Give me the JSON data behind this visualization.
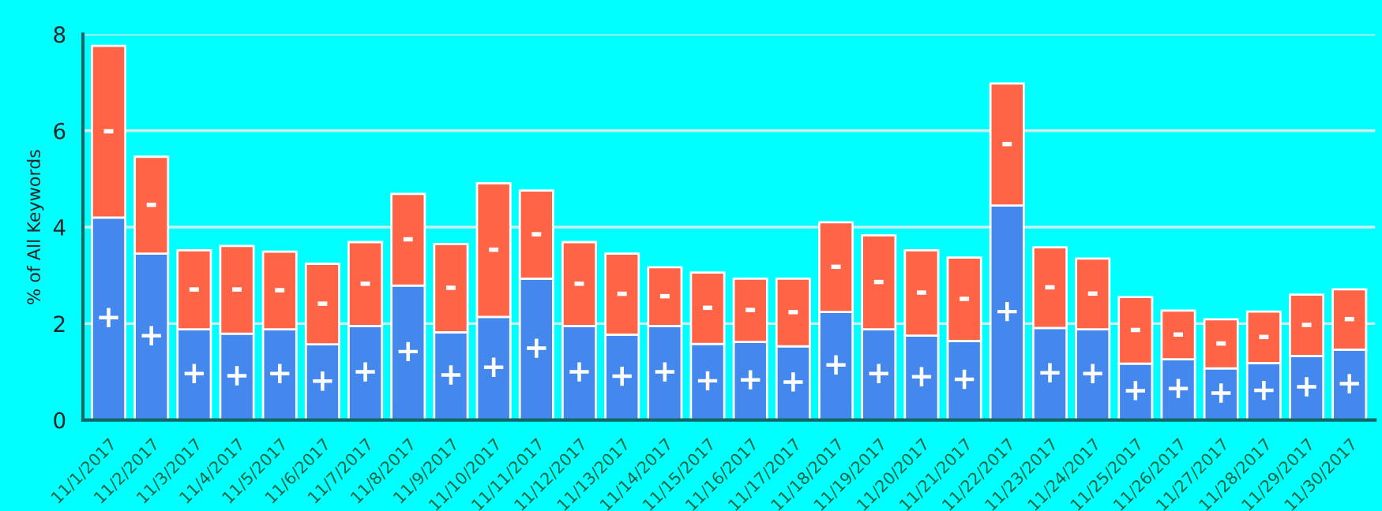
{
  "chart_data": {
    "type": "bar",
    "stacked": true,
    "ylabel": "% of All Keywords",
    "categories": [
      "11/1/2017",
      "11/2/2017",
      "11/3/2017",
      "11/4/2017",
      "11/5/2017",
      "11/6/2017",
      "11/7/2017",
      "11/8/2017",
      "11/9/2017",
      "11/10/2017",
      "11/11/2017",
      "11/12/2017",
      "11/13/2017",
      "11/14/2017",
      "11/15/2017",
      "11/16/2017",
      "11/17/2017",
      "11/18/2017",
      "11/19/2017",
      "11/20/2017",
      "11/21/2017",
      "11/22/2017",
      "11/23/2017",
      "11/24/2017",
      "11/25/2017",
      "11/26/2017",
      "11/27/2017",
      "11/28/2017",
      "11/29/2017",
      "11/30/2017"
    ],
    "series": [
      {
        "color": "#4488ee",
        "values": [
          4.2,
          3.45,
          1.88,
          1.79,
          1.88,
          1.57,
          1.95,
          2.79,
          1.82,
          2.14,
          2.93,
          1.95,
          1.77,
          1.95,
          1.58,
          1.62,
          1.53,
          2.24,
          1.88,
          1.75,
          1.64,
          4.45,
          1.91,
          1.88,
          1.17,
          1.26,
          1.07,
          1.18,
          1.33,
          1.46
        ],
        "value_labels": [
          "+",
          "+",
          "+",
          "+",
          "+",
          "+",
          "+",
          "+",
          "+",
          "+",
          "+",
          "+",
          "+",
          "+",
          "+",
          "+",
          "+",
          "+",
          "+",
          "+",
          "+",
          "+",
          "+",
          "+",
          "+",
          "+",
          "+",
          "+",
          "+",
          "+"
        ]
      },
      {
        "color": "#ff6447",
        "values": [
          3.56,
          2.01,
          1.64,
          1.82,
          1.61,
          1.67,
          1.74,
          1.9,
          1.83,
          2.77,
          1.83,
          1.74,
          1.68,
          1.22,
          1.48,
          1.31,
          1.4,
          1.86,
          1.95,
          1.77,
          1.73,
          2.53,
          1.67,
          1.47,
          1.38,
          1.01,
          1.02,
          1.07,
          1.27,
          1.25
        ],
        "value_labels": [
          "-",
          "-",
          "-",
          "-",
          "-",
          "-",
          "-",
          "-",
          "-",
          "-",
          "-",
          "-",
          "-",
          "-",
          "-",
          "-",
          "-",
          "-",
          "-",
          "-",
          "-",
          "-",
          "-",
          "-",
          "-",
          "-",
          "-",
          "-",
          "-",
          "-"
        ]
      }
    ],
    "ylim": [
      0,
      8
    ],
    "yticks": [
      0,
      2,
      4,
      6,
      8
    ],
    "grid": "y",
    "legend": false
  }
}
